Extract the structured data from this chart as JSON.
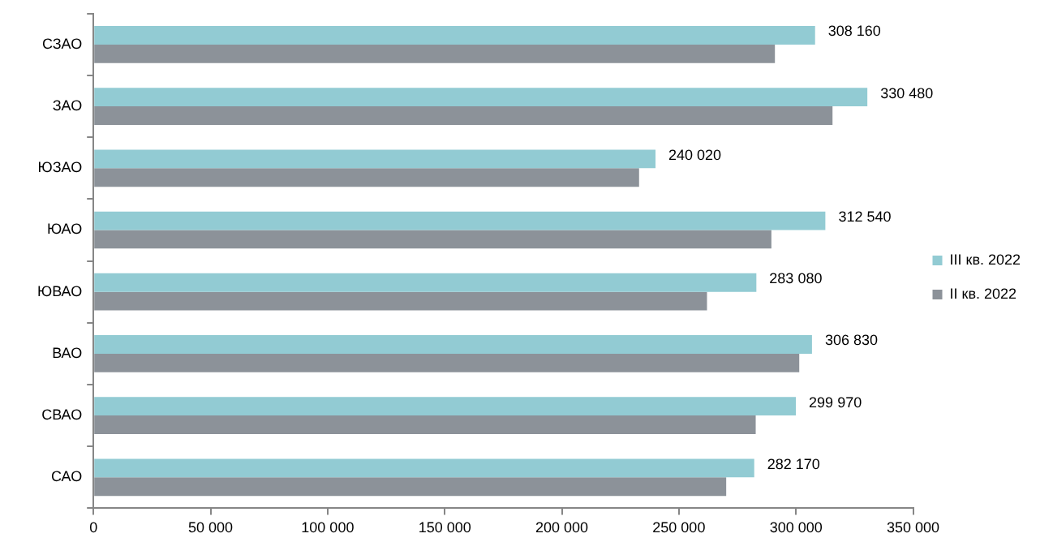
{
  "chart_data": {
    "type": "bar",
    "orientation": "horizontal",
    "categories": [
      "СЗАО",
      "ЗАО",
      "ЮЗАО",
      "ЮАО",
      "ЮВАО",
      "ВАО",
      "СВАО",
      "САО"
    ],
    "series": [
      {
        "name": "III кв. 2022",
        "color": "#92cbd3",
        "values": [
          308160,
          330480,
          240020,
          312540,
          283080,
          306830,
          299970,
          282170
        ],
        "value_labels": [
          "308 160",
          "330 480",
          "240 020",
          "312 540",
          "283 080",
          "306 830",
          "299 970",
          "282 170"
        ]
      },
      {
        "name": "II кв. 2022",
        "color": "#8c9299",
        "values": [
          291000,
          315600,
          233000,
          289500,
          262000,
          301400,
          282800,
          270200
        ]
      }
    ],
    "xlim": [
      0,
      350000
    ],
    "xticks": [
      {
        "value": 0,
        "label": "0"
      },
      {
        "value": 50000,
        "label": "50 000"
      },
      {
        "value": 100000,
        "label": "100 000"
      },
      {
        "value": 150000,
        "label": "150 000"
      },
      {
        "value": 200000,
        "label": "200 000"
      },
      {
        "value": 250000,
        "label": "250 000"
      },
      {
        "value": 300000,
        "label": "300 000"
      },
      {
        "value": 350000,
        "label": "350 000"
      }
    ],
    "grid": false,
    "legend": "right"
  }
}
